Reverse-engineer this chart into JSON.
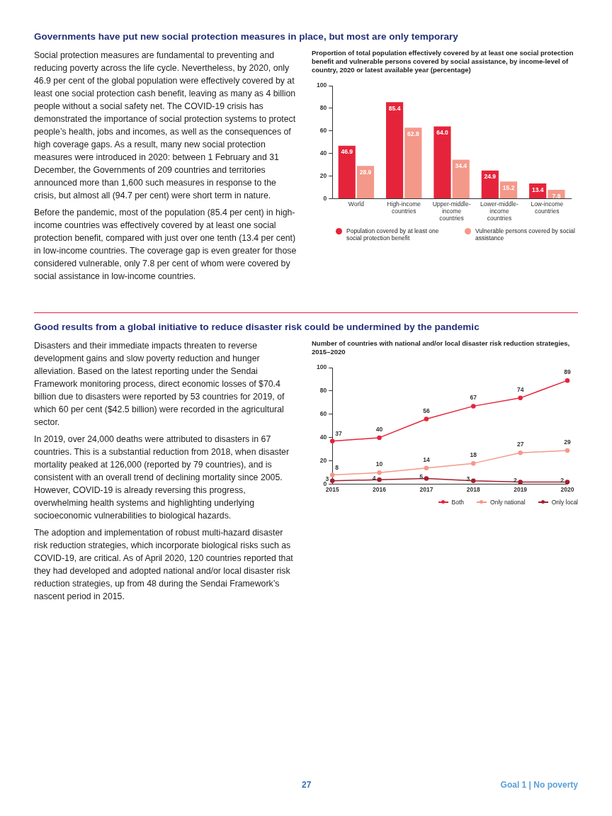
{
  "chart_data": [
    {
      "type": "bar",
      "title": "Governments have put new social protection measures in place, but most are only temporary",
      "subtitle": "Proportion of total population effectively covered by at least one social protection benefit and vulnerable persons covered by social assistance, by income-level of country, 2020 or latest available year (percentage)",
      "categories": [
        "World",
        "High-income countries",
        "Upper-middle-income countries",
        "Lower-middle-income countries",
        "Low-income countries"
      ],
      "series": [
        {
          "name": "Population covered by at least one social protection benefit",
          "color": "#e5243b",
          "values": [
            46.9,
            85.4,
            64.0,
            24.9,
            13.4
          ],
          "value_labels": [
            "46.9",
            "85.4",
            "64.0",
            "24.9",
            "13.4"
          ]
        },
        {
          "name": "Vulnerable persons covered by social assistance",
          "color": "#f4998a",
          "values": [
            28.9,
            62.8,
            34.4,
            15.2,
            7.8
          ],
          "value_labels": [
            "28.9",
            "62.8",
            "34.4",
            "15.2",
            "7.8"
          ]
        }
      ],
      "ylim": [
        0,
        100
      ],
      "yticks": [
        0,
        20,
        40,
        60,
        80,
        100
      ],
      "legend": "bottom",
      "annotations": [
        "Social protection measures are fundamental to preventing and reducing poverty across the life cycle. Nevertheless, by 2020, only 46.9 per cent of the global population were effectively covered by at least one social protection cash benefit, leaving as many as 4 billion people without a social safety net. The COVID-19 crisis has demonstrated the importance of social protection systems to protect people’s health, jobs and incomes, as well as the consequences of high coverage gaps. As a result, many new social protection measures were introduced in 2020: between 1 February and 31 December, the Governments of 209 countries and territories announced more than 1,600 such measures in response to the crisis, but almost all (94.7 per cent) were short term in nature.",
        "Before the pandemic, most of the population (85.4 per cent) in high-income countries was effectively covered by at least one social protection benefit, compared with just over one tenth (13.4 per cent) in low-income countries. The coverage gap is even greater for those considered vulnerable, only 7.8 per cent of whom were covered by social assistance in low-income countries."
      ]
    },
    {
      "type": "line",
      "title": "Good results from a global initiative to reduce disaster risk could be undermined by the pandemic",
      "subtitle": "Number of countries with national and/or local disaster risk reduction strategies, 2015–2020",
      "categories": [
        "2015",
        "2016",
        "2017",
        "2018",
        "2019",
        "2020"
      ],
      "series": [
        {
          "name": "Both",
          "color": "#e5243b",
          "values": [
            37,
            40,
            56,
            67,
            74,
            89
          ]
        },
        {
          "name": "Only national",
          "color": "#f4998a",
          "values": [
            8,
            10,
            14,
            18,
            27,
            29
          ]
        },
        {
          "name": "Only local",
          "color": "#a3202f",
          "values": [
            3,
            4,
            5,
            3,
            2,
            2
          ]
        }
      ],
      "ylim": [
        0,
        100
      ],
      "yticks": [
        0,
        20,
        40,
        60,
        80,
        100
      ],
      "legend": "bottom right",
      "data_labels": true,
      "marker": "circle",
      "annotations": [
        "Disasters and their immediate impacts threaten to reverse development gains and slow poverty reduction and hunger alleviation. Based on the latest reporting under the Sendai Framework monitoring process, direct economic losses of $70.4 billion due to disasters were reported by 53 countries for 2019, of which 60 per cent ($42.5 billion) were recorded in the agricultural sector.",
        "In 2019, over 24,000 deaths were attributed to disasters in 67 countries. This is a substantial reduction from 2018, when disaster mortality peaked at 126,000 (reported by 79 countries), and is consistent with an overall trend of declining mortality since 2005. However, COVID-19 is already reversing this progress, overwhelming health systems and highlighting underlying socioeconomic vulnerabilities to biological hazards.",
        "The adoption and implementation of robust multi-hazard disaster risk reduction strategies, which incorporate biological risks such as COVID-19, are critical. As of April 2020, 120 countries reported that they had developed and adopted national and/or local disaster risk reduction strategies, up from 48 during the Sendai Framework’s nascent period in 2015.",
        "27",
        "Goal 1 | No poverty"
      ]
    }
  ]
}
